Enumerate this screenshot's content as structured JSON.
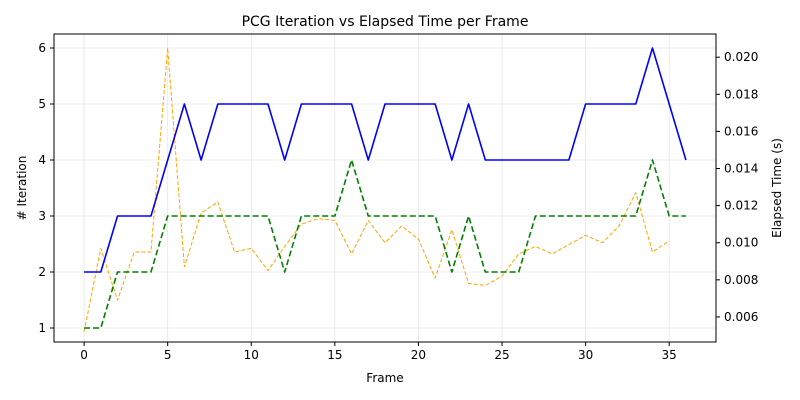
{
  "chart_data": {
    "type": "line",
    "title": "PCG Iteration vs Elapsed Time per Frame",
    "xlabel": "Frame",
    "ylabel_left": "# Iteration",
    "ylabel_right": "Elapsed Time (s)",
    "xlim": [
      -1.8,
      37.8
    ],
    "ylim_left": [
      0.75,
      6.25
    ],
    "ylim_right": [
      0.00465,
      0.02125
    ],
    "xticks": [
      0,
      5,
      10,
      15,
      20,
      25,
      30,
      35
    ],
    "yticks_left": [
      1,
      2,
      3,
      4,
      5,
      6
    ],
    "yticks_right": [
      0.006,
      0.008,
      0.01,
      0.012,
      0.014,
      0.016,
      0.018,
      0.02
    ],
    "grid": true,
    "series": [
      {
        "axis": "left",
        "color": "#0000ff",
        "style": "solid",
        "x": [
          0,
          1,
          2,
          3,
          4,
          5,
          6,
          7,
          8,
          9,
          10,
          11,
          12,
          13,
          14,
          15,
          16,
          17,
          18,
          19,
          20,
          21,
          22,
          23,
          24,
          25,
          26,
          27,
          28,
          29,
          30,
          31,
          32,
          33,
          34,
          35,
          36
        ],
        "values": [
          2,
          2,
          3,
          3,
          3,
          4,
          5,
          4,
          5,
          5,
          5,
          5,
          4,
          5,
          5,
          5,
          5,
          4,
          5,
          5,
          5,
          5,
          4,
          5,
          4,
          4,
          4,
          4,
          4,
          4,
          5,
          5,
          5,
          5,
          6,
          5,
          4
        ]
      },
      {
        "axis": "left",
        "color": "#008000",
        "style": "dashed",
        "x": [
          0,
          1,
          2,
          3,
          4,
          5,
          6,
          7,
          8,
          9,
          10,
          11,
          12,
          13,
          14,
          15,
          16,
          17,
          18,
          19,
          20,
          21,
          22,
          23,
          24,
          25,
          26,
          27,
          28,
          29,
          30,
          31,
          32,
          33,
          34,
          35,
          36
        ],
        "values": [
          1,
          1,
          2,
          2,
          2,
          3,
          3,
          3,
          3,
          3,
          3,
          3,
          2,
          3,
          3,
          3,
          4,
          3,
          3,
          3,
          3,
          3,
          2,
          3,
          2,
          2,
          2,
          3,
          3,
          3,
          3,
          3,
          3,
          3,
          4,
          3,
          3
        ]
      },
      {
        "axis": "right",
        "color": "#ffa500",
        "style": "dashed",
        "x": [
          0,
          1,
          2,
          3,
          4,
          5,
          6,
          7,
          8,
          9,
          10,
          11,
          12,
          13,
          14,
          15,
          16,
          17,
          18,
          19,
          20,
          21,
          22,
          23,
          24,
          25,
          26,
          27,
          28,
          29,
          30,
          31,
          32,
          33,
          34,
          35
        ],
        "values": [
          0.0052,
          0.0097,
          0.0069,
          0.0095,
          0.0095,
          0.0205,
          0.0087,
          0.0116,
          0.0122,
          0.0095,
          0.0097,
          0.0085,
          0.0098,
          0.011,
          0.0113,
          0.0112,
          0.0094,
          0.0112,
          0.01,
          0.0109,
          0.0102,
          0.0081,
          0.0107,
          0.0078,
          0.0077,
          0.0082,
          0.0094,
          0.0098,
          0.0094,
          0.0099,
          0.0104,
          0.01,
          0.0109,
          0.0127,
          0.0095,
          0.0101
        ]
      }
    ]
  }
}
